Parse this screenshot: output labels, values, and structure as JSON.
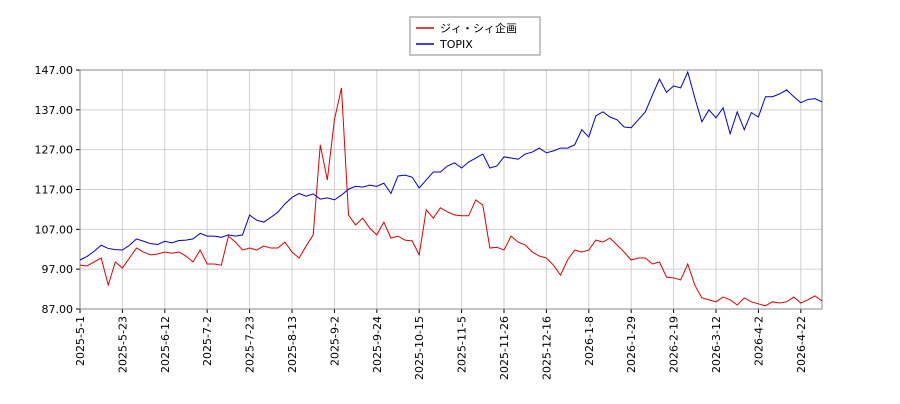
{
  "chart_data": {
    "type": "line",
    "categories": [
      "2025-5-1",
      null,
      null,
      null,
      null,
      null,
      "2025-5-23",
      null,
      null,
      null,
      null,
      null,
      "2025-6-12",
      null,
      null,
      null,
      null,
      null,
      "2025-7-2",
      null,
      null,
      null,
      null,
      null,
      "2025-7-23",
      null,
      null,
      null,
      null,
      null,
      "2025-8-13",
      null,
      null,
      null,
      null,
      null,
      "2025-9-2",
      null,
      null,
      null,
      null,
      null,
      "2025-9-24",
      null,
      null,
      null,
      null,
      null,
      "2025-10-15",
      null,
      null,
      null,
      null,
      null,
      "2025-11-5",
      null,
      null,
      null,
      null,
      null,
      "2025-11-26",
      null,
      null,
      null,
      null,
      null,
      "2025-12-16",
      null,
      null,
      null,
      null,
      null,
      "2026-1-8",
      null,
      null,
      null,
      null,
      null,
      "2026-1-29",
      null,
      null,
      null,
      null,
      null,
      "2026-2-19",
      null,
      null,
      null,
      null,
      null,
      "2026-3-12",
      null,
      null,
      null,
      null,
      null,
      "2026-4-2",
      null,
      null,
      null,
      null,
      null,
      "2026-4-22",
      null,
      null,
      null
    ],
    "series": [
      {
        "name": "ジィ・シィ企画",
        "color": "#dd0000",
        "values": [
          98,
          97.8,
          98.8,
          99.8,
          93,
          98.8,
          97.3,
          99.8,
          102.3,
          101.3,
          100.6,
          100.8,
          101.3,
          101,
          101.3,
          100.3,
          98.8,
          101.8,
          98.3,
          98.3,
          98,
          105.3,
          103.8,
          101.8,
          102.3,
          101.8,
          102.8,
          102.3,
          102.3,
          103.8,
          101.3,
          99.8,
          102.8,
          105.6,
          128.2,
          119.4,
          134.5,
          142.5,
          110.6,
          108.1,
          109.8,
          107.3,
          105.6,
          108.8,
          104.8,
          105.3,
          104.3,
          104.1,
          100.6,
          111.9,
          109.8,
          112.4,
          111.4,
          110.6,
          110.4,
          110.4,
          114.4,
          113.1,
          102.3,
          102.5,
          101.8,
          105.3,
          103.8,
          103.1,
          101.3,
          100.3,
          99.8,
          98,
          95.5,
          99.3,
          101.8,
          101.3,
          101.8,
          104.3,
          103.8,
          104.8,
          103.1,
          101.3,
          99.3,
          99.8,
          99.8,
          98.3,
          98.8,
          95,
          94.8,
          94.3,
          98.3,
          93,
          89.8,
          89.3,
          88.8,
          90,
          89.3,
          88,
          89.8,
          88.8,
          88.3,
          87.8,
          88.8,
          88.5,
          88.8,
          90,
          88.5,
          89.3,
          90.3,
          89
        ]
      },
      {
        "name": "TOPIX",
        "color": "#0000cc",
        "values": [
          99.3,
          100.2,
          101.5,
          103,
          102.2,
          101.9,
          101.8,
          103,
          104.6,
          104,
          103.4,
          103.2,
          104,
          103.6,
          104.2,
          104.3,
          104.6,
          106,
          105.3,
          105.3,
          105,
          105.6,
          105.3,
          105.6,
          110.6,
          109.3,
          108.8,
          110,
          111.3,
          113.4,
          115,
          116,
          115.3,
          115.9,
          114.6,
          114.9,
          114.4,
          115.6,
          117.1,
          117.8,
          117.6,
          118.1,
          117.8,
          118.6,
          116,
          120.4,
          120.6,
          120.1,
          117.4,
          119.4,
          121.4,
          121.4,
          122.9,
          123.7,
          122.4,
          123.9,
          124.9,
          125.9,
          122.4,
          122.9,
          125.2,
          124.9,
          124.6,
          125.9,
          126.4,
          127.4,
          126.2,
          126.7,
          127.4,
          127.4,
          128.2,
          132,
          130.2,
          135.5,
          136.5,
          135.2,
          134.5,
          132.7,
          132.5,
          134.5,
          136.5,
          140.7,
          144.7,
          141.4,
          143,
          142.5,
          146.5,
          140,
          134,
          137,
          135,
          137.5,
          131,
          136.5,
          132,
          136.3,
          135.2,
          140.3,
          140.3,
          141,
          142,
          140.3,
          138.8,
          139.6,
          139.8,
          139
        ]
      }
    ],
    "ylim": [
      87,
      147
    ],
    "yticks": [
      {
        "value": 87,
        "label": "87.00"
      },
      {
        "value": 97,
        "label": "97.00"
      },
      {
        "value": 107,
        "label": "107.00"
      },
      {
        "value": 117,
        "label": "117.00"
      },
      {
        "value": 127,
        "label": "127.00"
      },
      {
        "value": 137,
        "label": "137.00"
      },
      {
        "value": 147,
        "label": "147.00"
      }
    ],
    "grid": true,
    "legend": "top"
  }
}
